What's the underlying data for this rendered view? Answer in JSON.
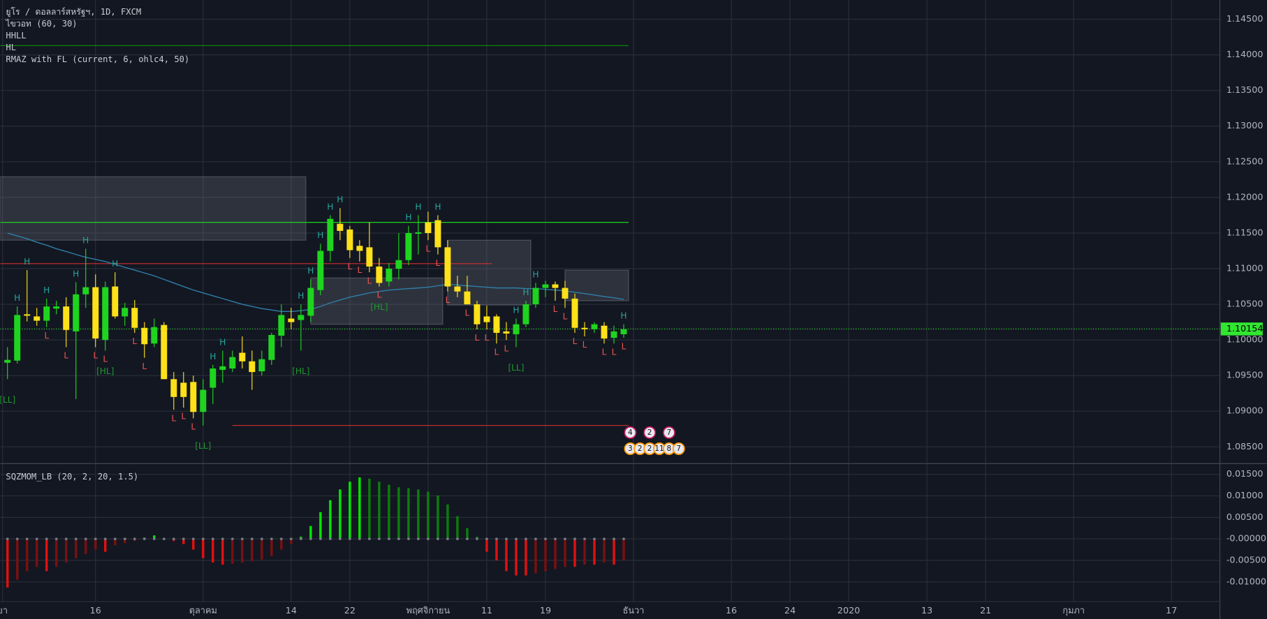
{
  "chart_data": [
    {
      "type": "candlestick",
      "title": "ยูโร / ดอลลาร์สหรัฐฯ, 1D, FXCM",
      "indicators": [
        "ไขวอท (60, 30)",
        "HHLL",
        "HL",
        "RMAZ with FL (current, 6, ohlc4, 50)"
      ],
      "open": [
        1.0968,
        1.0971,
        1.1036,
        1.1033,
        1.1027,
        1.1044,
        1.1047,
        1.1012,
        1.1064,
        1.1074,
        1.1,
        1.1075,
        1.1033,
        1.1045,
        1.1017,
        1.0995,
        1.1021,
        1.0945,
        1.094,
        1.0941,
        1.0899,
        1.0933,
        1.0958,
        1.096,
        1.0982,
        1.097,
        1.0956,
        1.0972,
        1.1006,
        1.103,
        1.1028,
        1.1034,
        1.107,
        1.1125,
        1.1163,
        1.1155,
        1.1132,
        1.113,
        1.1103,
        1.1082,
        1.11,
        1.1112,
        1.1149,
        1.1165,
        1.1168,
        1.113,
        1.1075,
        1.1068,
        1.105,
        1.1033,
        1.1033,
        1.1012,
        1.1008,
        1.1022,
        1.105,
        1.1073,
        1.1078,
        1.1073,
        1.1058,
        1.1017,
        1.1015,
        1.102,
        1.1003,
        1.1008
      ],
      "high": [
        1.099,
        1.1047,
        1.1098,
        1.1045,
        1.1058,
        1.1055,
        1.106,
        1.1081,
        1.1128,
        1.1092,
        1.1082,
        1.1095,
        1.1052,
        1.1056,
        1.1025,
        1.103,
        1.1025,
        1.0955,
        1.0955,
        1.095,
        1.0945,
        1.0965,
        1.0985,
        1.0985,
        1.1005,
        1.0985,
        1.0985,
        1.101,
        1.105,
        1.1045,
        1.105,
        1.1085,
        1.1135,
        1.1175,
        1.1185,
        1.116,
        1.114,
        1.1165,
        1.1115,
        1.1108,
        1.115,
        1.116,
        1.1175,
        1.118,
        1.1175,
        1.114,
        1.109,
        1.109,
        1.1055,
        1.1048,
        1.1036,
        1.1025,
        1.103,
        1.1055,
        1.108,
        1.1083,
        1.1082,
        1.1083,
        1.1065,
        1.1025,
        1.1025,
        1.1025,
        1.102,
        1.1022
      ],
      "low": [
        1.0945,
        1.0967,
        1.1026,
        1.102,
        1.1018,
        1.1036,
        1.099,
        1.0917,
        1.1045,
        1.099,
        1.0985,
        1.103,
        1.102,
        1.101,
        1.0975,
        1.099,
        1.0945,
        1.0902,
        1.0905,
        1.089,
        1.088,
        1.091,
        1.094,
        1.0955,
        1.096,
        1.093,
        1.095,
        1.0965,
        1.099,
        1.1015,
        1.0985,
        1.1025,
        1.1063,
        1.111,
        1.114,
        1.1115,
        1.111,
        1.1095,
        1.1075,
        1.1075,
        1.1085,
        1.1105,
        1.112,
        1.114,
        1.112,
        1.1068,
        1.106,
        1.105,
        1.1015,
        1.1015,
        1.0995,
        1.1,
        1.099,
        1.1018,
        1.1045,
        1.106,
        1.1055,
        1.1045,
        1.101,
        1.1005,
        1.101,
        1.0995,
        1.0995,
        1.1003
      ],
      "close": [
        1.0972,
        1.1035,
        1.1034,
        1.1027,
        1.1047,
        1.1047,
        1.1014,
        1.1064,
        1.1074,
        1.1002,
        1.1074,
        1.1033,
        1.1045,
        1.1017,
        1.0994,
        1.1018,
        1.0945,
        1.092,
        1.092,
        1.0899,
        1.093,
        1.096,
        1.0963,
        1.0976,
        1.097,
        1.0955,
        1.0973,
        1.1007,
        1.1035,
        1.1025,
        1.1035,
        1.1073,
        1.1125,
        1.117,
        1.1153,
        1.1126,
        1.1125,
        1.1103,
        1.108,
        1.11,
        1.1112,
        1.115,
        1.1151,
        1.115,
        1.113,
        1.1075,
        1.1068,
        1.105,
        1.1022,
        1.1025,
        1.101,
        1.1009,
        1.1022,
        1.105,
        1.1073,
        1.1078,
        1.1073,
        1.1058,
        1.1017,
        1.1015,
        1.1022,
        1.1002,
        1.1012,
        1.1015
      ],
      "up_color": "#1fd41f",
      "down_color": "#ffe119",
      "ma_values": [
        1.115,
        1.1146,
        1.1142,
        1.1137,
        1.1133,
        1.1128,
        1.1124,
        1.112,
        1.1116,
        1.1113,
        1.111,
        1.1106,
        1.1102,
        1.1098,
        1.1094,
        1.109,
        1.1085,
        1.108,
        1.1075,
        1.107,
        1.1066,
        1.1062,
        1.1058,
        1.1054,
        1.105,
        1.1047,
        1.1044,
        1.1042,
        1.104,
        1.104,
        1.1041,
        1.1043,
        1.1047,
        1.1052,
        1.1056,
        1.106,
        1.1063,
        1.1066,
        1.1068,
        1.107,
        1.1071,
        1.1072,
        1.1073,
        1.1074,
        1.1076,
        1.1078,
        1.1077,
        1.1076,
        1.1075,
        1.1074,
        1.1073,
        1.1073,
        1.1073,
        1.1072,
        1.1072,
        1.1071,
        1.107,
        1.1069,
        1.1067,
        1.1065,
        1.1063,
        1.1061,
        1.1059,
        1.1057
      ],
      "ma_color": "#2f7fa8",
      "boxes": [
        {
          "from": -0.74,
          "to": 30,
          "top": 1.1229,
          "bottom": 1.114
        },
        {
          "from": 31,
          "to": 44,
          "top": 1.1087,
          "bottom": 1.1022
        },
        {
          "from": 45,
          "to": 53,
          "top": 1.114,
          "bottom": 1.1049
        },
        {
          "from": 57,
          "to": 63,
          "top": 1.1098,
          "bottom": 1.1055
        }
      ],
      "levels": [
        {
          "value": 1.1413,
          "color": "#0c8f0c",
          "from": -0.74,
          "to": 63
        },
        {
          "value": 1.1165,
          "color": "#1ed41e",
          "from": -0.74,
          "to": 63
        },
        {
          "value": 1.1107,
          "color": "#d32f2f",
          "from": -0.74,
          "to": 49
        },
        {
          "value": 1.088,
          "color": "#d32f2f",
          "from": 23,
          "to": 63
        }
      ],
      "annotations": [
        {
          "text": "H",
          "bar": 1
        },
        {
          "text": "H",
          "bar": 2
        },
        {
          "text": "H",
          "bar": 4
        },
        {
          "text": "H",
          "bar": 7
        },
        {
          "text": "H",
          "bar": 8
        },
        {
          "text": "H",
          "bar": 11
        },
        {
          "text": "H",
          "bar": 21
        },
        {
          "text": "H",
          "bar": 22
        },
        {
          "text": "H",
          "bar": 30
        },
        {
          "text": "H",
          "bar": 31
        },
        {
          "text": "H",
          "bar": 32
        },
        {
          "text": "H",
          "bar": 33
        },
        {
          "text": "H",
          "bar": 34
        },
        {
          "text": "H",
          "bar": 41
        },
        {
          "text": "H",
          "bar": 42
        },
        {
          "text": "H",
          "bar": 44
        },
        {
          "text": "H",
          "bar": 52
        },
        {
          "text": "H",
          "bar": 53
        },
        {
          "text": "H",
          "bar": 54
        },
        {
          "text": "H",
          "bar": 63
        },
        {
          "text": "L",
          "bar": 4
        },
        {
          "text": "L",
          "bar": 6
        },
        {
          "text": "L",
          "bar": 9
        },
        {
          "text": "L",
          "bar": 10
        },
        {
          "text": "L",
          "bar": 13
        },
        {
          "text": "L",
          "bar": 14
        },
        {
          "text": "L",
          "bar": 17
        },
        {
          "text": "L",
          "bar": 18
        },
        {
          "text": "L",
          "bar": 19
        },
        {
          "text": "L",
          "bar": 35
        },
        {
          "text": "L",
          "bar": 36
        },
        {
          "text": "L",
          "bar": 37
        },
        {
          "text": "L",
          "bar": 38
        },
        {
          "text": "L",
          "bar": 43
        },
        {
          "text": "L",
          "bar": 44
        },
        {
          "text": "L",
          "bar": 45
        },
        {
          "text": "L",
          "bar": 47
        },
        {
          "text": "L",
          "bar": 48
        },
        {
          "text": "L",
          "bar": 49
        },
        {
          "text": "L",
          "bar": 50
        },
        {
          "text": "L",
          "bar": 51
        },
        {
          "text": "L",
          "bar": 56
        },
        {
          "text": "L",
          "bar": 57
        },
        {
          "text": "L",
          "bar": 58
        },
        {
          "text": "L",
          "bar": 59
        },
        {
          "text": "L",
          "bar": 61
        },
        {
          "text": "L",
          "bar": 62
        },
        {
          "text": "L",
          "bar": 63
        },
        {
          "text": "[LL]",
          "bar": 0
        },
        {
          "text": "[HL]",
          "bar": 10
        },
        {
          "text": "[LL]",
          "bar": 20
        },
        {
          "text": "[HL]",
          "bar": 30
        },
        {
          "text": "[HL]",
          "bar": 38
        },
        {
          "text": "[LL]",
          "bar": 52
        }
      ],
      "last_price": {
        "value": 1.10154,
        "label": "1.10154"
      },
      "event_badges": [
        [
          4,
          2,
          7
        ],
        [
          3,
          2,
          2,
          11,
          8,
          7
        ]
      ],
      "xlim": [
        -0.74,
        123.95
      ],
      "ylim": [
        1.0827,
        1.1477
      ],
      "yticks": [
        {
          "value": 1.145,
          "label": "1.14500"
        },
        {
          "value": 1.14,
          "label": "1.14000"
        },
        {
          "value": 1.135,
          "label": "1.13500"
        },
        {
          "value": 1.13,
          "label": "1.13000"
        },
        {
          "value": 1.125,
          "label": "1.12500"
        },
        {
          "value": 1.12,
          "label": "1.12000"
        },
        {
          "value": 1.115,
          "label": "1.11500"
        },
        {
          "value": 1.11,
          "label": "1.11000"
        },
        {
          "value": 1.105,
          "label": "1.10500"
        },
        {
          "value": 1.1,
          "label": "1.10000"
        },
        {
          "value": 1.095,
          "label": "1.09500"
        },
        {
          "value": 1.09,
          "label": "1.09000"
        },
        {
          "value": 1.085,
          "label": "1.08500"
        }
      ],
      "grid": true
    },
    {
      "type": "bar",
      "title": "SQZMOM_LB (20, 2, 20, 1.5)",
      "values": [
        -0.0113,
        -0.0095,
        -0.0075,
        -0.0065,
        -0.0075,
        -0.0065,
        -0.0055,
        -0.0045,
        -0.0035,
        -0.0025,
        -0.003,
        -0.0015,
        -0.001,
        -0.0005,
        0.0003,
        0.0008,
        0.0002,
        -0.0005,
        -0.0012,
        -0.0025,
        -0.0045,
        -0.0055,
        -0.006,
        -0.0058,
        -0.0055,
        -0.0052,
        -0.0048,
        -0.004,
        -0.0025,
        -0.0012,
        0.0005,
        0.003,
        0.0062,
        0.009,
        0.0115,
        0.0133,
        0.0143,
        0.014,
        0.0133,
        0.0126,
        0.012,
        0.0118,
        0.0115,
        0.011,
        0.0101,
        0.008,
        0.0053,
        0.0025,
        0.0005,
        -0.003,
        -0.005,
        -0.0075,
        -0.0085,
        -0.0085,
        -0.008,
        -0.0075,
        -0.007,
        -0.0065,
        -0.0065,
        -0.006,
        -0.006,
        -0.0055,
        -0.006,
        -0.005
      ],
      "colors": {
        "up_rising": "#00e600",
        "up_falling": "#0b7d0b",
        "down_falling": "#e01010",
        "down_rising": "#7a1010"
      },
      "xlim": [
        -0.74,
        123.95
      ],
      "xticks": [
        {
          "value": -0.5,
          "label": "ยา"
        },
        {
          "value": 9,
          "label": "16"
        },
        {
          "value": 20,
          "label": "ตุลาคม"
        },
        {
          "value": 29,
          "label": "14"
        },
        {
          "value": 35,
          "label": "22"
        },
        {
          "value": 43,
          "label": "พฤศจิกายน"
        },
        {
          "value": 49,
          "label": "11"
        },
        {
          "value": 55,
          "label": "19"
        },
        {
          "value": 64,
          "label": "ธันวา"
        },
        {
          "value": 74,
          "label": "16"
        },
        {
          "value": 80,
          "label": "24"
        },
        {
          "value": 86,
          "label": "2020"
        },
        {
          "value": 94,
          "label": "13"
        },
        {
          "value": 100,
          "label": "21"
        },
        {
          "value": 109,
          "label": "กุมภา"
        },
        {
          "value": 119,
          "label": "17"
        }
      ],
      "ylim": [
        -0.0145,
        0.0174
      ],
      "yticks": [
        {
          "value": 0.015,
          "label": "0.01500"
        },
        {
          "value": 0.01,
          "label": "0.01000"
        },
        {
          "value": 0.005,
          "label": "0.00500"
        },
        {
          "value": 0,
          "label": "-0.00000"
        },
        {
          "value": -0.005,
          "label": "-0.00500"
        },
        {
          "value": -0.01,
          "label": "-0.01000"
        }
      ],
      "grid": true
    }
  ]
}
